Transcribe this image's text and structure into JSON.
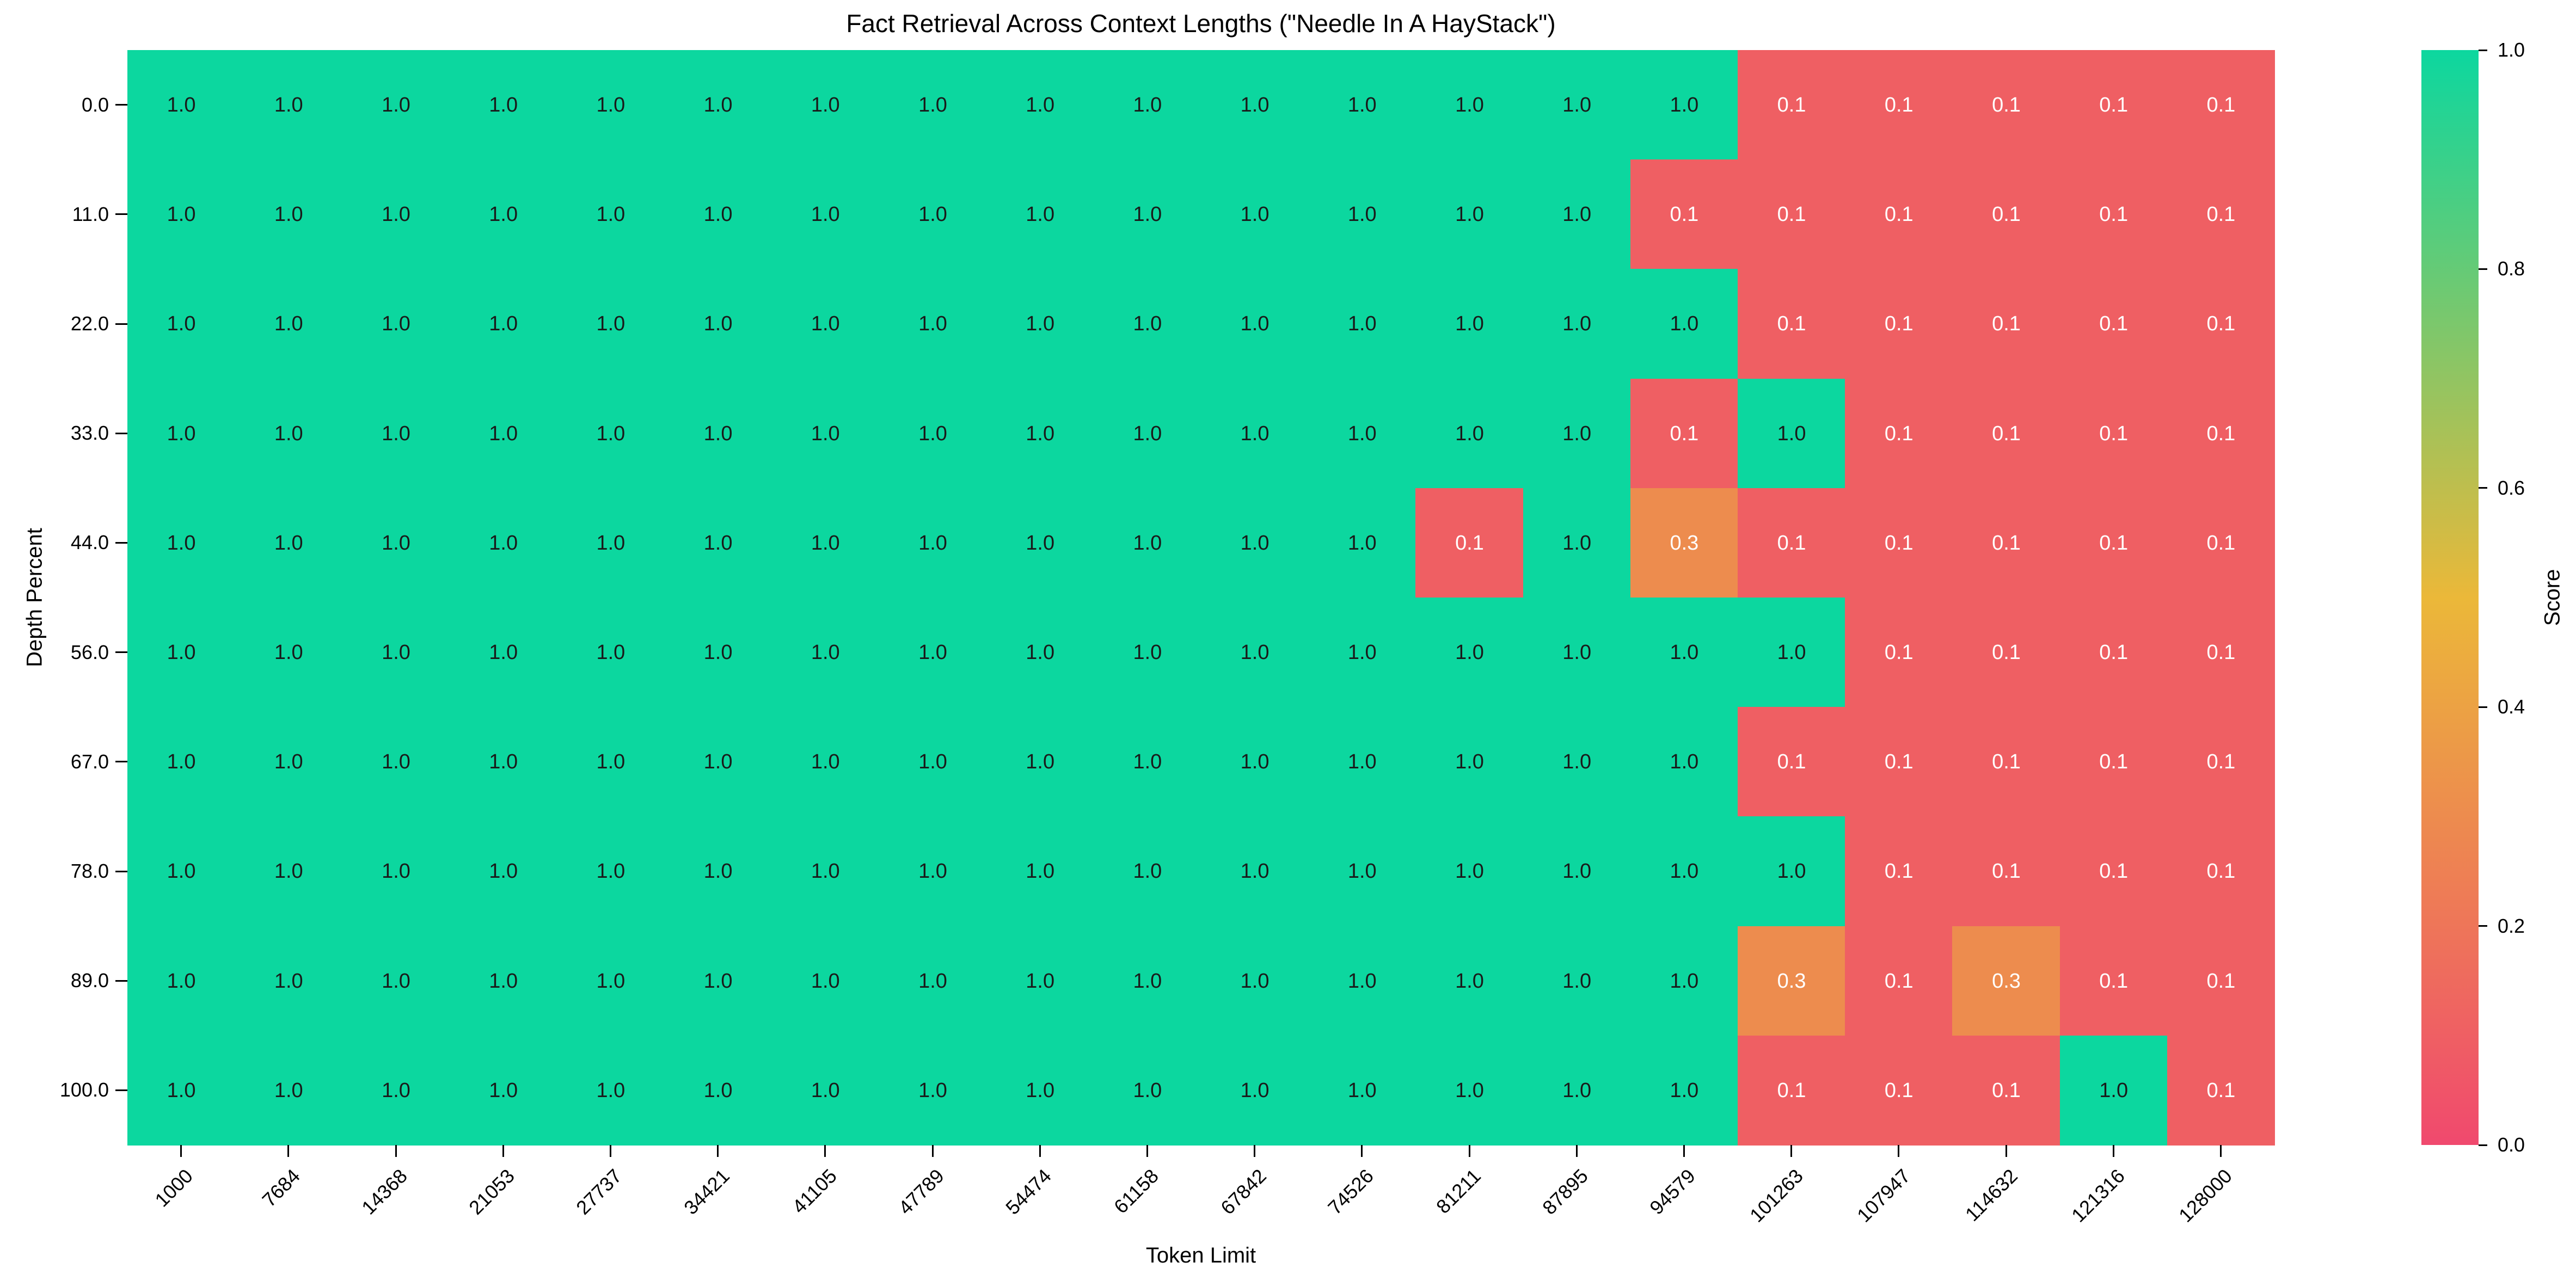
{
  "chart_data": {
    "type": "heatmap",
    "title": "Fact Retrieval Across Context Lengths (\"Needle In A HayStack\")",
    "xlabel": "Token Limit",
    "ylabel": "Depth Percent",
    "colorbar_label": "Score",
    "x_tick_labels": [
      "1000",
      "7684",
      "14368",
      "21053",
      "27737",
      "34421",
      "41105",
      "47789",
      "54474",
      "61158",
      "67842",
      "74526",
      "81211",
      "87895",
      "94579",
      "101263",
      "107947",
      "114632",
      "121316",
      "128000"
    ],
    "y_tick_labels": [
      "0.0",
      "11.0",
      "22.0",
      "33.0",
      "44.0",
      "56.0",
      "67.0",
      "78.0",
      "89.0",
      "100.0"
    ],
    "colorbar_tick_labels": [
      "1.0",
      "0.8",
      "0.6",
      "0.4",
      "0.2",
      "0.0"
    ],
    "vmin": 0.0,
    "vmax": 1.0,
    "grid": false,
    "legend_position": "right-colorbar",
    "colormap_stops": [
      "#F0496E",
      "#EBB839",
      "#0CD79F"
    ],
    "cell_colors": {
      "1.0": "#0CD79F",
      "0.3": "#ED8C4E",
      "0.1": "#EF5F63"
    },
    "cell_text_color_high": "#1a1a1a",
    "cell_text_color_low": "#ffffff",
    "values": [
      [
        1.0,
        1.0,
        1.0,
        1.0,
        1.0,
        1.0,
        1.0,
        1.0,
        1.0,
        1.0,
        1.0,
        1.0,
        1.0,
        1.0,
        1.0,
        0.1,
        0.1,
        0.1,
        0.1,
        0.1
      ],
      [
        1.0,
        1.0,
        1.0,
        1.0,
        1.0,
        1.0,
        1.0,
        1.0,
        1.0,
        1.0,
        1.0,
        1.0,
        1.0,
        1.0,
        0.1,
        0.1,
        0.1,
        0.1,
        0.1,
        0.1
      ],
      [
        1.0,
        1.0,
        1.0,
        1.0,
        1.0,
        1.0,
        1.0,
        1.0,
        1.0,
        1.0,
        1.0,
        1.0,
        1.0,
        1.0,
        1.0,
        0.1,
        0.1,
        0.1,
        0.1,
        0.1
      ],
      [
        1.0,
        1.0,
        1.0,
        1.0,
        1.0,
        1.0,
        1.0,
        1.0,
        1.0,
        1.0,
        1.0,
        1.0,
        1.0,
        1.0,
        0.1,
        1.0,
        0.1,
        0.1,
        0.1,
        0.1
      ],
      [
        1.0,
        1.0,
        1.0,
        1.0,
        1.0,
        1.0,
        1.0,
        1.0,
        1.0,
        1.0,
        1.0,
        1.0,
        0.1,
        1.0,
        0.3,
        0.1,
        0.1,
        0.1,
        0.1,
        0.1
      ],
      [
        1.0,
        1.0,
        1.0,
        1.0,
        1.0,
        1.0,
        1.0,
        1.0,
        1.0,
        1.0,
        1.0,
        1.0,
        1.0,
        1.0,
        1.0,
        1.0,
        0.1,
        0.1,
        0.1,
        0.1
      ],
      [
        1.0,
        1.0,
        1.0,
        1.0,
        1.0,
        1.0,
        1.0,
        1.0,
        1.0,
        1.0,
        1.0,
        1.0,
        1.0,
        1.0,
        1.0,
        0.1,
        0.1,
        0.1,
        0.1,
        0.1
      ],
      [
        1.0,
        1.0,
        1.0,
        1.0,
        1.0,
        1.0,
        1.0,
        1.0,
        1.0,
        1.0,
        1.0,
        1.0,
        1.0,
        1.0,
        1.0,
        1.0,
        0.1,
        0.1,
        0.1,
        0.1
      ],
      [
        1.0,
        1.0,
        1.0,
        1.0,
        1.0,
        1.0,
        1.0,
        1.0,
        1.0,
        1.0,
        1.0,
        1.0,
        1.0,
        1.0,
        1.0,
        0.3,
        0.1,
        0.3,
        0.1,
        0.1
      ],
      [
        1.0,
        1.0,
        1.0,
        1.0,
        1.0,
        1.0,
        1.0,
        1.0,
        1.0,
        1.0,
        1.0,
        1.0,
        1.0,
        1.0,
        1.0,
        0.1,
        0.1,
        0.1,
        1.0,
        0.1
      ]
    ]
  }
}
